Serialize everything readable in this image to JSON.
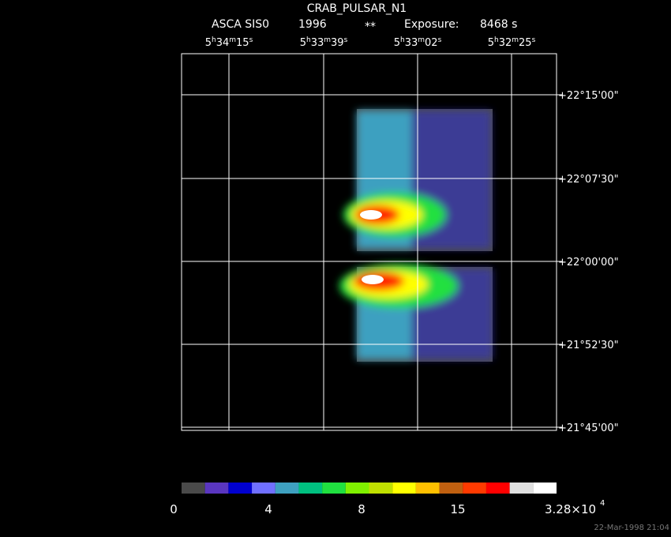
{
  "header": {
    "title": "CRAB_PULSAR_N1",
    "instrument": "ASCA SIS0",
    "year": "1996",
    "flag": "**",
    "exposure_label": "Exposure:",
    "exposure": "8468 s"
  },
  "ra_labels": [
    [
      "5",
      "h",
      "34",
      "m",
      "15",
      "s"
    ],
    [
      "5",
      "h",
      "33",
      "m",
      "39",
      "s"
    ],
    [
      "5",
      "h",
      "33",
      "m",
      "02",
      "s"
    ],
    [
      "5",
      "h",
      "32",
      "m",
      "25",
      "s"
    ]
  ],
  "dec_labels": [
    "+22°15'00\"",
    "+22°07'30\"",
    "+22°00'00\"",
    "+21°52'30\"",
    "+21°45'00\""
  ],
  "colorbar": {
    "colors": [
      "#4a4a4a",
      "#5a36c0",
      "#0000d0",
      "#7070ff",
      "#3ea0c0",
      "#00c080",
      "#20e040",
      "#80f000",
      "#c0e000",
      "#ffff00",
      "#ffc000",
      "#c06010",
      "#ff3a00",
      "#ff0000",
      "#e0e0e0",
      "#ffffff"
    ],
    "labels": [
      "0",
      "4",
      "8",
      "15"
    ],
    "max_label": "3.28×10",
    "max_exp": "4"
  },
  "timestamp": "22-Mar-1998 21:04"
}
